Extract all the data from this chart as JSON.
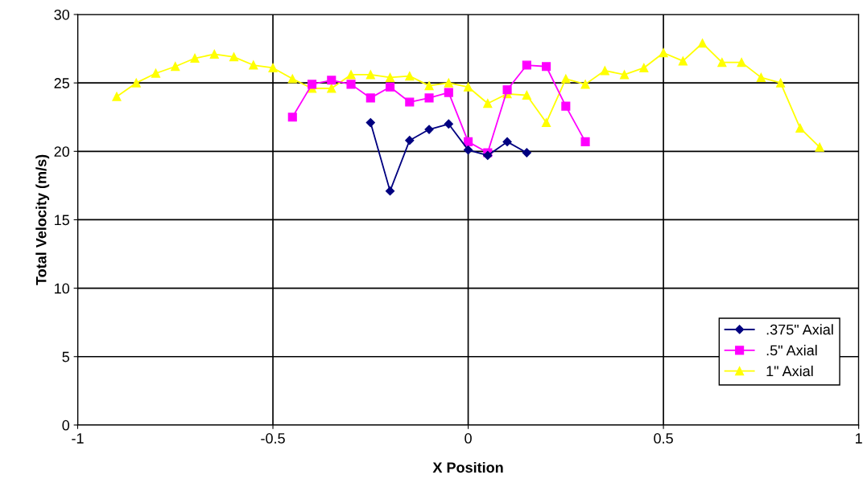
{
  "chart_data": {
    "type": "line",
    "xlabel": "X Position",
    "ylabel": "Total Velocity (m/s)",
    "xlim": [
      -1,
      1
    ],
    "xticks": [
      -1,
      -0.5,
      0,
      0.5,
      1
    ],
    "ylim": [
      0,
      30
    ],
    "yticks": [
      0,
      5,
      10,
      15,
      20,
      25,
      30
    ],
    "grid": true,
    "legend": "lower right",
    "series": [
      {
        "name": ".375\" Axial",
        "color": "#000080",
        "marker": "diamond",
        "x": [
          -0.25,
          -0.2,
          -0.15,
          -0.1,
          -0.05,
          0,
          0.05,
          0.1,
          0.15
        ],
        "values": [
          22.1,
          17.1,
          20.8,
          21.6,
          22.0,
          20.1,
          19.7,
          20.7,
          19.9
        ]
      },
      {
        "name": ".5\" Axial",
        "color": "#ff00ff",
        "marker": "square",
        "x": [
          -0.45,
          -0.4,
          -0.35,
          -0.3,
          -0.25,
          -0.2,
          -0.15,
          -0.1,
          -0.05,
          0,
          0.05,
          0.1,
          0.15,
          0.2,
          0.25,
          0.3
        ],
        "values": [
          22.5,
          24.9,
          25.2,
          24.9,
          23.9,
          24.7,
          23.6,
          23.9,
          24.3,
          20.7,
          19.9,
          24.5,
          26.3,
          26.2,
          23.3,
          20.7
        ]
      },
      {
        "name": "1\" Axial",
        "color": "#ffff00",
        "marker": "triangle",
        "x": [
          -0.9,
          -0.85,
          -0.8,
          -0.75,
          -0.7,
          -0.65,
          -0.6,
          -0.55,
          -0.5,
          -0.45,
          -0.4,
          -0.35,
          -0.3,
          -0.25,
          -0.2,
          -0.15,
          -0.1,
          -0.05,
          0,
          0.05,
          0.1,
          0.15,
          0.2,
          0.25,
          0.3,
          0.35,
          0.4,
          0.45,
          0.5,
          0.55,
          0.6,
          0.65,
          0.7,
          0.75,
          0.8,
          0.85,
          0.9
        ],
        "values": [
          24.0,
          25.0,
          25.7,
          26.2,
          26.8,
          27.1,
          26.9,
          26.3,
          26.1,
          25.3,
          24.6,
          24.6,
          25.6,
          25.6,
          25.4,
          25.5,
          24.8,
          25.0,
          24.7,
          23.5,
          24.2,
          24.1,
          22.1,
          25.3,
          24.9,
          25.9,
          25.6,
          26.1,
          27.2,
          26.6,
          27.9,
          26.5,
          26.5,
          25.4,
          25.0,
          21.7,
          20.3
        ]
      }
    ]
  }
}
